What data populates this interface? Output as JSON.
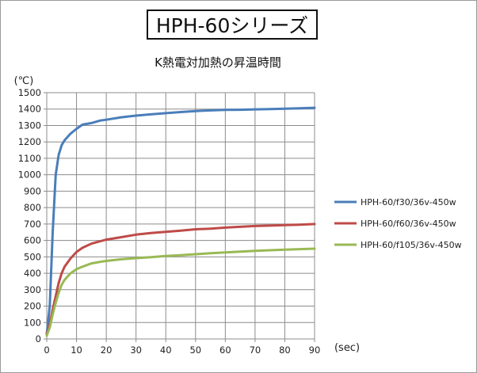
{
  "header": {
    "badge_text": "HPH-60シリーズ"
  },
  "chart_data": {
    "type": "line",
    "title": "K熱電対加熱の昇温時間",
    "ylabel": "(℃)",
    "xlabel": "(sec)",
    "xlim": [
      0,
      90
    ],
    "ylim": [
      0,
      1500
    ],
    "x_ticks": [
      "0",
      "10",
      "20",
      "30",
      "40",
      "50",
      "60",
      "70",
      "80",
      "90"
    ],
    "y_ticks": [
      "0",
      "100",
      "200",
      "300",
      "400",
      "500",
      "600",
      "700",
      "800",
      "900",
      "1000",
      "1100",
      "1200",
      "1300",
      "1400",
      "1500"
    ],
    "grid": true,
    "legend_position": "right",
    "series": [
      {
        "name": "HPH-60/f30/36v-450w",
        "color": "#4a7ebb",
        "points": [
          [
            0,
            30
          ],
          [
            1,
            200
          ],
          [
            2,
            650
          ],
          [
            3,
            1000
          ],
          [
            4,
            1120
          ],
          [
            5,
            1180
          ],
          [
            6,
            1210
          ],
          [
            8,
            1250
          ],
          [
            10,
            1280
          ],
          [
            12,
            1305
          ],
          [
            15,
            1315
          ],
          [
            18,
            1330
          ],
          [
            20,
            1335
          ],
          [
            25,
            1350
          ],
          [
            30,
            1360
          ],
          [
            35,
            1368
          ],
          [
            40,
            1375
          ],
          [
            45,
            1382
          ],
          [
            50,
            1388
          ],
          [
            55,
            1392
          ],
          [
            60,
            1395
          ],
          [
            65,
            1396
          ],
          [
            70,
            1398
          ],
          [
            75,
            1400
          ],
          [
            80,
            1402
          ],
          [
            85,
            1405
          ],
          [
            90,
            1408
          ]
        ]
      },
      {
        "name": "HPH-60/f60/36v-450w",
        "color": "#be4b48",
        "points": [
          [
            0,
            30
          ],
          [
            1,
            90
          ],
          [
            2,
            180
          ],
          [
            3,
            260
          ],
          [
            4,
            340
          ],
          [
            5,
            400
          ],
          [
            6,
            440
          ],
          [
            8,
            490
          ],
          [
            10,
            530
          ],
          [
            12,
            555
          ],
          [
            15,
            580
          ],
          [
            18,
            595
          ],
          [
            20,
            605
          ],
          [
            25,
            620
          ],
          [
            30,
            635
          ],
          [
            35,
            645
          ],
          [
            40,
            652
          ],
          [
            45,
            660
          ],
          [
            50,
            668
          ],
          [
            55,
            672
          ],
          [
            60,
            678
          ],
          [
            65,
            683
          ],
          [
            70,
            688
          ],
          [
            75,
            690
          ],
          [
            80,
            693
          ],
          [
            85,
            696
          ],
          [
            90,
            700
          ]
        ]
      },
      {
        "name": "HPH-60/f105/36v-450w",
        "color": "#98b954",
        "points": [
          [
            0,
            20
          ],
          [
            1,
            70
          ],
          [
            2,
            150
          ],
          [
            3,
            220
          ],
          [
            4,
            280
          ],
          [
            5,
            330
          ],
          [
            6,
            360
          ],
          [
            8,
            400
          ],
          [
            10,
            425
          ],
          [
            12,
            440
          ],
          [
            15,
            460
          ],
          [
            18,
            470
          ],
          [
            20,
            475
          ],
          [
            25,
            485
          ],
          [
            30,
            492
          ],
          [
            35,
            498
          ],
          [
            40,
            505
          ],
          [
            45,
            510
          ],
          [
            50,
            516
          ],
          [
            55,
            522
          ],
          [
            60,
            527
          ],
          [
            65,
            532
          ],
          [
            70,
            537
          ],
          [
            75,
            540
          ],
          [
            80,
            544
          ],
          [
            85,
            547
          ],
          [
            90,
            550
          ]
        ]
      }
    ]
  }
}
